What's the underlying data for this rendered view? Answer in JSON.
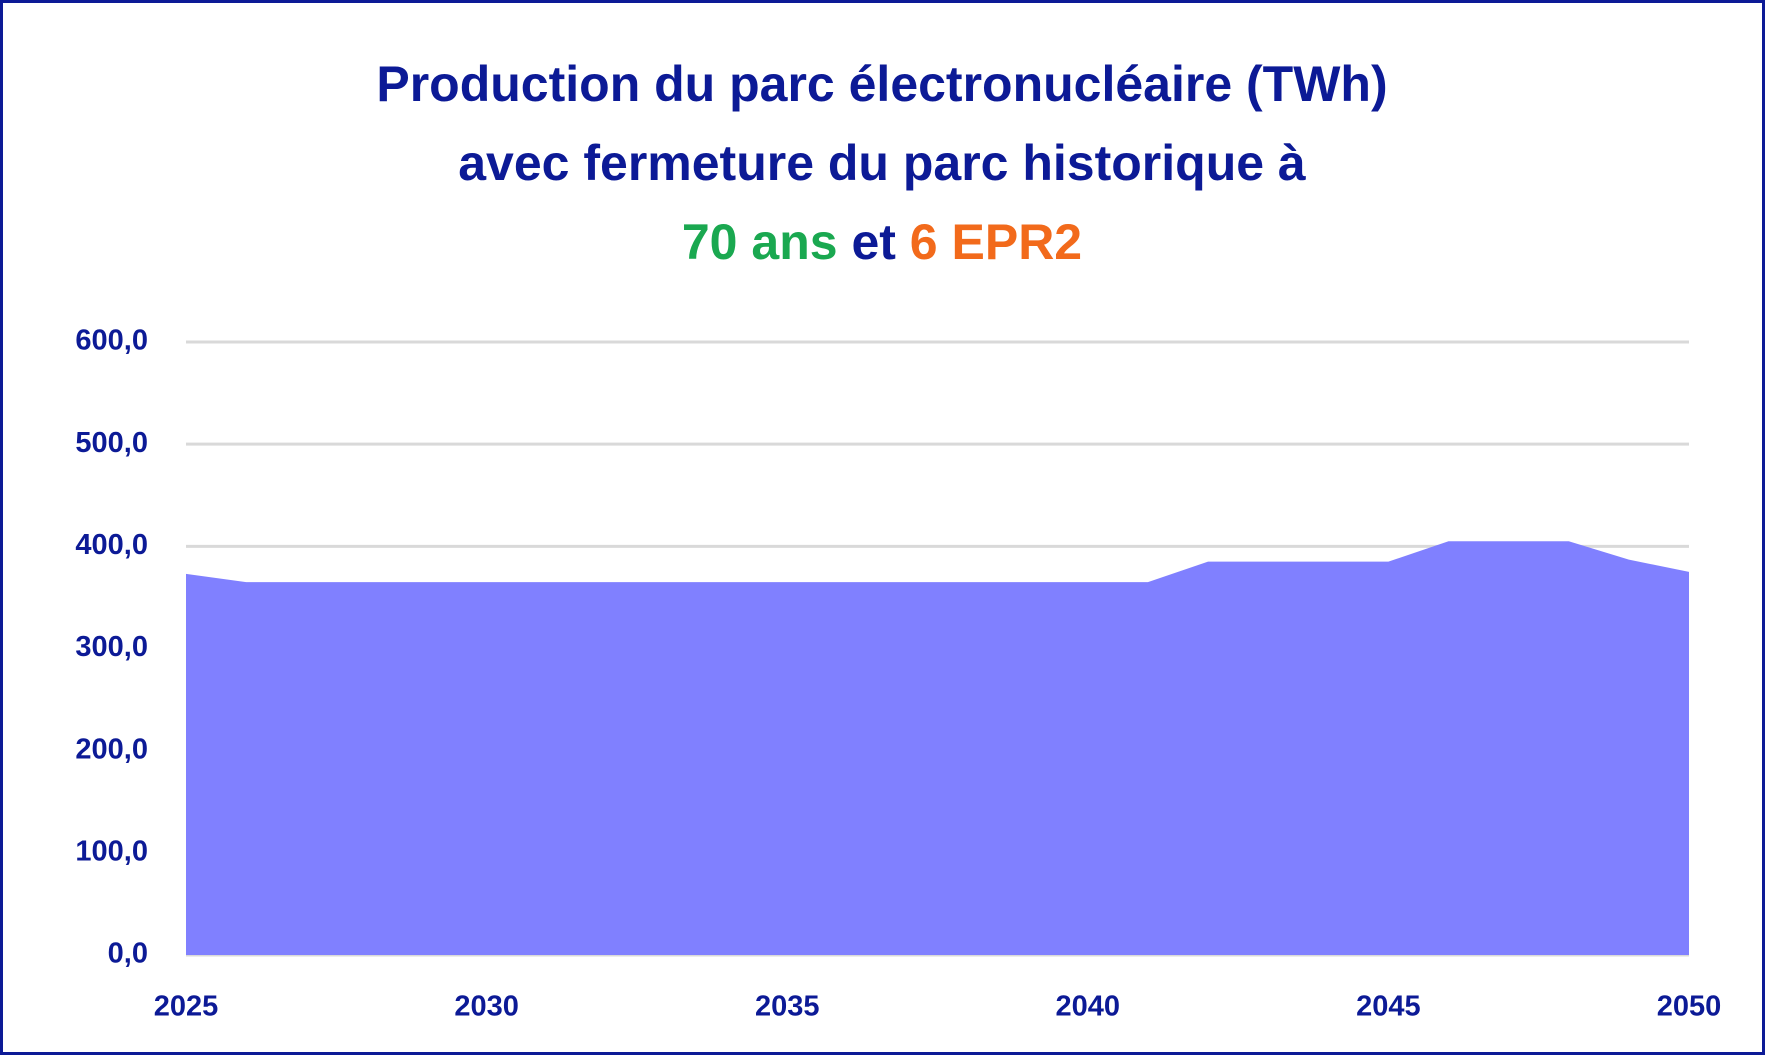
{
  "chart_data": {
    "type": "area",
    "title_lines": [
      [
        {
          "text": "Production du parc électronucléaire (TWh)",
          "color": "#0c1a96"
        }
      ],
      [
        {
          "text": "avec fermeture du parc historique à",
          "color": "#0c1a96"
        }
      ],
      [
        {
          "text": "70 ans",
          "color": "#1aa850"
        },
        {
          "text": " et ",
          "color": "#0c1a96"
        },
        {
          "text": "6 EPR2",
          "color": "#f26a1b"
        }
      ]
    ],
    "x": [
      2025,
      2026,
      2027,
      2028,
      2029,
      2030,
      2031,
      2032,
      2033,
      2034,
      2035,
      2036,
      2037,
      2038,
      2039,
      2040,
      2041,
      2042,
      2043,
      2044,
      2045,
      2046,
      2047,
      2048,
      2049,
      2050
    ],
    "values": [
      373,
      365,
      365,
      365,
      365,
      365,
      365,
      365,
      365,
      365,
      365,
      365,
      365,
      365,
      365,
      365,
      365,
      385,
      385,
      385,
      385,
      405,
      405,
      405,
      387,
      375
    ],
    "color": "#8080ff",
    "xlim": [
      2025,
      2050
    ],
    "xticks": [
      2025,
      2030,
      2035,
      2040,
      2045,
      2050
    ],
    "ylim": [
      0,
      600
    ],
    "yticks": [
      {
        "value": 0,
        "label": "0,0"
      },
      {
        "value": 100,
        "label": "100,0"
      },
      {
        "value": 200,
        "label": "200,0"
      },
      {
        "value": 300,
        "label": "300,0"
      },
      {
        "value": 400,
        "label": "400,0"
      },
      {
        "value": 500,
        "label": "500,0"
      },
      {
        "value": 600,
        "label": "600,0"
      }
    ],
    "grid": true
  }
}
